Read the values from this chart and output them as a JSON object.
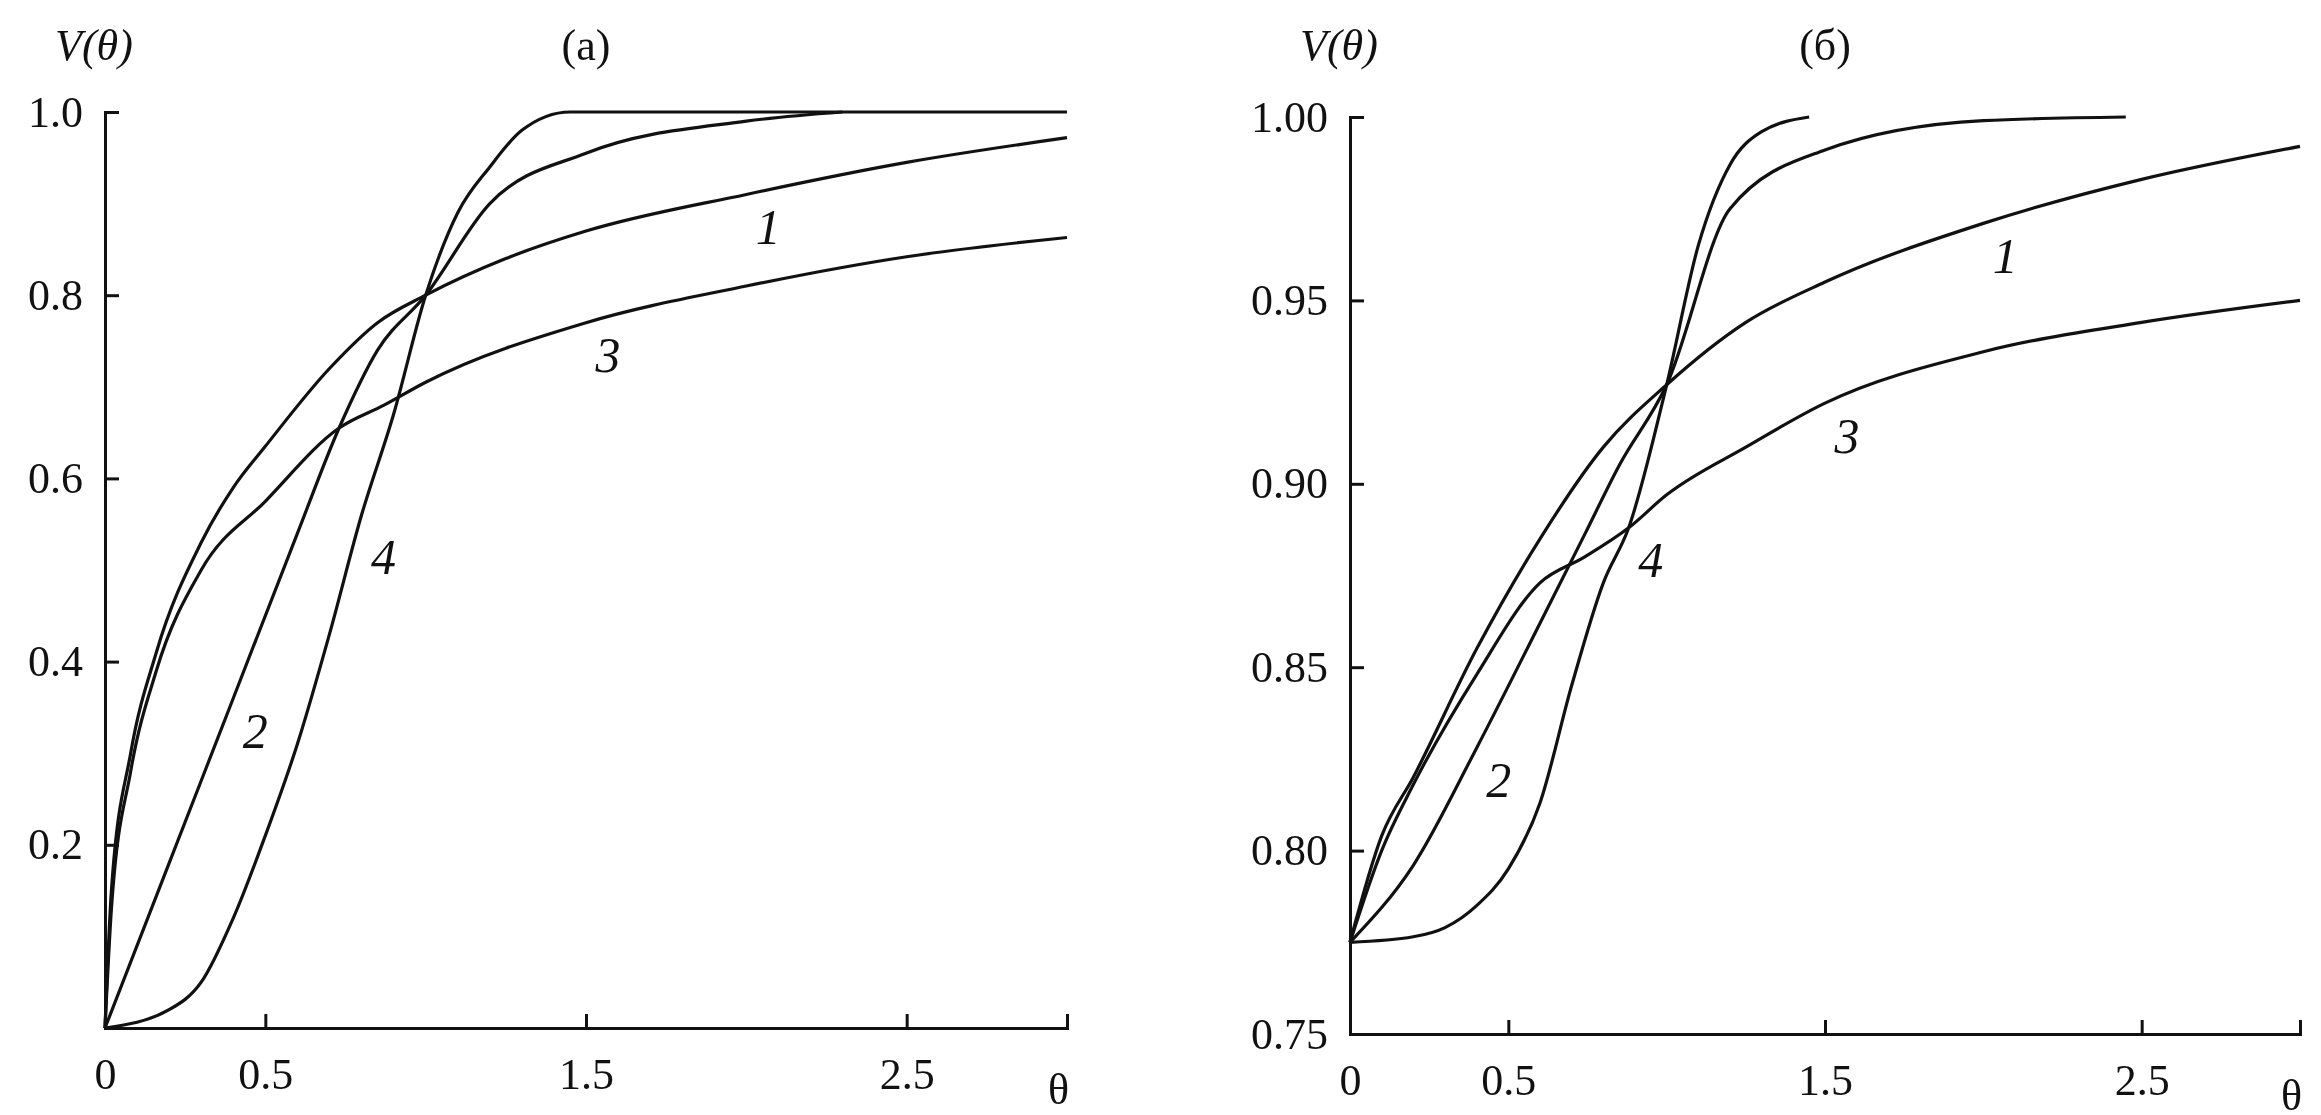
{
  "chart_data": [
    {
      "type": "line",
      "title": "(a)",
      "xlabel": "θ",
      "ylabel": "V(θ)",
      "xlim": [
        0,
        3
      ],
      "ylim": [
        0,
        1
      ],
      "xticks": [
        0,
        0.5,
        1.5,
        2.5
      ],
      "yticks": [
        0.2,
        0.4,
        0.6,
        0.8,
        {
          "value": 1,
          "label": "1.0"
        }
      ],
      "series": [
        {
          "color": "#111111",
          "x": [
            0,
            0.02,
            0.08,
            0.16,
            0.3,
            0.4,
            0.5,
            0.7,
            0.85,
            1.0,
            1.25,
            1.5,
            2.0,
            2.5,
            3.0
          ],
          "values": [
            0,
            0.15,
            0.3,
            0.41,
            0.53,
            0.59,
            0.635,
            0.72,
            0.77,
            0.8,
            0.84,
            0.87,
            0.91,
            0.945,
            0.972
          ]
        },
        {
          "color": "#111111",
          "x": [
            0,
            0.2,
            0.4,
            0.6,
            0.73,
            0.85,
            1.0,
            1.2,
            1.5,
            2.0,
            2.3
          ],
          "values": [
            0,
            0.18,
            0.36,
            0.54,
            0.655,
            0.74,
            0.8,
            0.9,
            0.955,
            0.99,
            1.0
          ]
        },
        {
          "color": "#111111",
          "x": [
            0,
            0.02,
            0.08,
            0.16,
            0.3,
            0.5,
            0.73,
            0.87,
            1.0,
            1.5,
            2.0,
            2.5,
            3.0
          ],
          "values": [
            0,
            0.13,
            0.28,
            0.39,
            0.5,
            0.575,
            0.655,
            0.68,
            0.705,
            0.77,
            0.81,
            0.842,
            0.863
          ]
        },
        {
          "color": "#111111",
          "x": [
            0,
            0.2,
            0.3,
            0.4,
            0.5,
            0.6,
            0.7,
            0.8,
            0.9,
            1.0,
            1.1,
            1.2,
            1.3,
            1.45,
            3.0
          ],
          "values": [
            0,
            0.02,
            0.05,
            0.12,
            0.21,
            0.31,
            0.43,
            0.56,
            0.67,
            0.8,
            0.89,
            0.94,
            0.98,
            1.0,
            1.0
          ]
        }
      ],
      "annotations": [
        {
          "text": "1",
          "x": 2.0,
          "y": 0.91
        },
        {
          "text": "2",
          "x": 0.4,
          "y": 0.36
        },
        {
          "text": "3",
          "x": 1.5,
          "y": 0.77
        },
        {
          "text": "4",
          "x": 0.8,
          "y": 0.55
        }
      ]
    },
    {
      "type": "line",
      "title": "(б)",
      "xlabel": "θ",
      "ylabel": "V(θ)",
      "xlim": [
        0,
        3
      ],
      "ylim": [
        0.75,
        1
      ],
      "xticks": [
        0,
        0.5,
        1.5,
        2.5
      ],
      "yticks": [
        {
          "value": 0.75,
          "label": "0.75"
        },
        {
          "value": 0.8,
          "label": "0.80"
        },
        0.85,
        {
          "value": 0.9,
          "label": "0.90"
        },
        0.95,
        {
          "value": 1,
          "label": "1.00"
        }
      ],
      "series": [
        {
          "color": "#111111",
          "x": [
            0,
            0.1,
            0.2,
            0.4,
            0.6,
            0.8,
            1.0,
            1.25,
            1.5,
            2.0,
            2.5,
            3.0
          ],
          "values": [
            0.775,
            0.804,
            0.82,
            0.855,
            0.885,
            0.91,
            0.927,
            0.944,
            0.955,
            0.971,
            0.983,
            0.992
          ]
        },
        {
          "color": "#111111",
          "x": [
            0,
            0.2,
            0.4,
            0.6,
            0.74,
            0.85,
            1.0,
            1.2,
            1.5,
            2.0,
            2.45
          ],
          "values": [
            0.775,
            0.796,
            0.828,
            0.862,
            0.886,
            0.905,
            0.927,
            0.975,
            0.991,
            0.999,
            1.0
          ]
        },
        {
          "color": "#111111",
          "x": [
            0,
            0.1,
            0.2,
            0.4,
            0.6,
            0.74,
            0.88,
            1.0,
            1.25,
            1.5,
            2.0,
            2.5,
            3.0
          ],
          "values": [
            0.775,
            0.8,
            0.818,
            0.848,
            0.873,
            0.88,
            0.888,
            0.897,
            0.91,
            0.922,
            0.936,
            0.944,
            0.95
          ]
        },
        {
          "color": "#111111",
          "x": [
            0,
            0.2,
            0.3,
            0.4,
            0.5,
            0.6,
            0.7,
            0.8,
            0.88,
            1.0,
            1.1,
            1.2,
            1.3,
            1.45
          ],
          "values": [
            0.775,
            0.7765,
            0.779,
            0.785,
            0.795,
            0.813,
            0.845,
            0.873,
            0.888,
            0.927,
            0.965,
            0.987,
            0.996,
            1.0
          ]
        }
      ],
      "annotations": [
        {
          "text": "1",
          "x": 2.0,
          "y": 0.971
        },
        {
          "text": "2",
          "x": 0.4,
          "y": 0.828
        },
        {
          "text": "3",
          "x": 1.5,
          "y": 0.922
        },
        {
          "text": "4",
          "x": 0.88,
          "y": 0.888
        }
      ]
    }
  ]
}
